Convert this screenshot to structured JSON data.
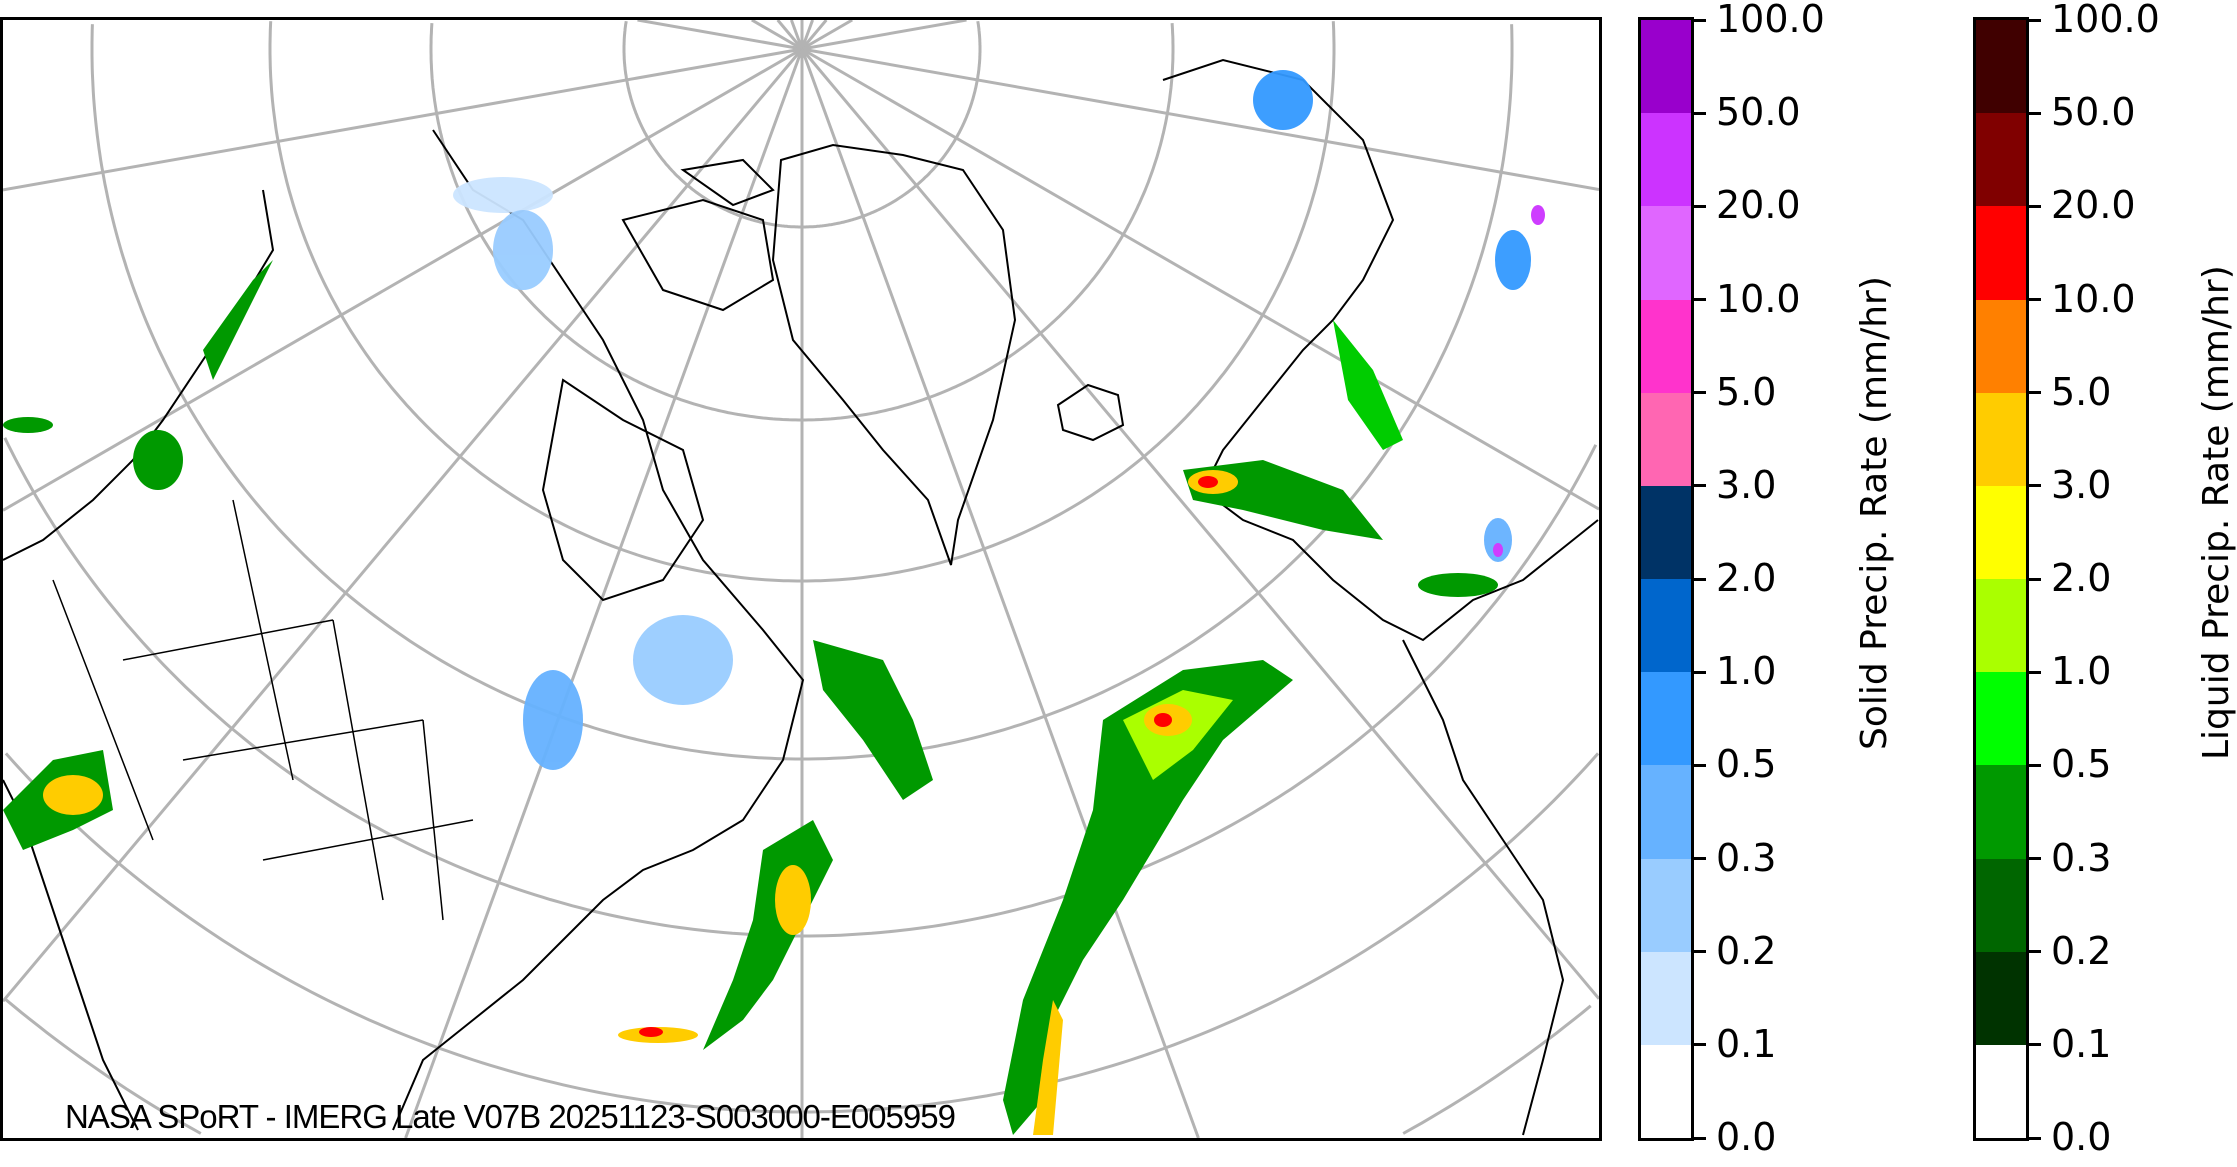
{
  "caption": "NASA SPoRT - IMERG Late V07B 20251123-S003000-E005959",
  "colorbars": [
    {
      "label": "Solid Precip. Rate (mm/hr)",
      "ticks": [
        "0.0",
        "0.1",
        "0.2",
        "0.3",
        "0.5",
        "1.0",
        "2.0",
        "3.0",
        "5.0",
        "10.0",
        "20.0",
        "50.0",
        "100.0"
      ],
      "colors": [
        "#ffffff",
        "#cce5ff",
        "#99ccff",
        "#66b2ff",
        "#3399ff",
        "#0066cc",
        "#003366",
        "#ff66b2",
        "#ff33cc",
        "#e066ff",
        "#cc33ff",
        "#9900cc"
      ]
    },
    {
      "label": "Liquid Precip. Rate (mm/hr)",
      "ticks": [
        "0.0",
        "0.1",
        "0.2",
        "0.3",
        "0.5",
        "1.0",
        "2.0",
        "3.0",
        "5.0",
        "10.0",
        "20.0",
        "50.0",
        "100.0"
      ],
      "colors": [
        "#ffffff",
        "#003300",
        "#006600",
        "#009900",
        "#00ff00",
        "#aaff00",
        "#ffff00",
        "#ffcc00",
        "#ff8000",
        "#ff0000",
        "#800000",
        "#400000"
      ]
    }
  ],
  "map": {
    "graticule_color": "#b3b3b3",
    "coastline_color": "#000000"
  }
}
